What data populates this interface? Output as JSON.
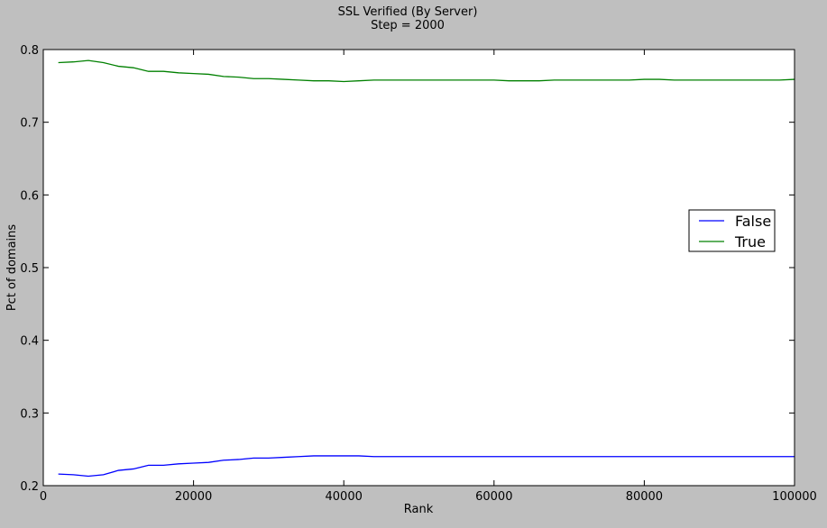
{
  "chart_data": {
    "type": "line",
    "title": "SSL Verified (By Server)",
    "subtitle": "Step = 2000",
    "xlabel": "Rank",
    "ylabel": "Pct of domains",
    "xlim": [
      0,
      100000
    ],
    "ylim": [
      0.2,
      0.8
    ],
    "xticks": [
      "0",
      "20000",
      "40000",
      "60000",
      "80000",
      "100000"
    ],
    "yticks": [
      "0.2",
      "0.3",
      "0.4",
      "0.5",
      "0.6",
      "0.7",
      "0.8"
    ],
    "legend_position": "center-right",
    "grid": false,
    "x": [
      2000,
      4000,
      6000,
      8000,
      10000,
      12000,
      14000,
      16000,
      18000,
      20000,
      22000,
      24000,
      26000,
      28000,
      30000,
      32000,
      34000,
      36000,
      38000,
      40000,
      42000,
      44000,
      46000,
      48000,
      50000,
      52000,
      54000,
      56000,
      58000,
      60000,
      62000,
      64000,
      66000,
      68000,
      70000,
      72000,
      74000,
      76000,
      78000,
      80000,
      82000,
      84000,
      86000,
      88000,
      90000,
      92000,
      94000,
      96000,
      98000,
      100000
    ],
    "series": [
      {
        "name": "False",
        "color": "#0000ff",
        "values": [
          0.216,
          0.215,
          0.213,
          0.215,
          0.221,
          0.223,
          0.228,
          0.228,
          0.23,
          0.231,
          0.232,
          0.235,
          0.236,
          0.238,
          0.238,
          0.239,
          0.24,
          0.241,
          0.241,
          0.241,
          0.241,
          0.24,
          0.24,
          0.24,
          0.24,
          0.24,
          0.24,
          0.24,
          0.24,
          0.24,
          0.24,
          0.24,
          0.24,
          0.24,
          0.24,
          0.24,
          0.24,
          0.24,
          0.24,
          0.24,
          0.24,
          0.24,
          0.24,
          0.24,
          0.24,
          0.24,
          0.24,
          0.24,
          0.24,
          0.24
        ]
      },
      {
        "name": "True",
        "color": "#008000",
        "values": [
          0.782,
          0.783,
          0.785,
          0.782,
          0.777,
          0.775,
          0.77,
          0.77,
          0.768,
          0.767,
          0.766,
          0.763,
          0.762,
          0.76,
          0.76,
          0.759,
          0.758,
          0.757,
          0.757,
          0.756,
          0.757,
          0.758,
          0.758,
          0.758,
          0.758,
          0.758,
          0.758,
          0.758,
          0.758,
          0.758,
          0.757,
          0.757,
          0.757,
          0.758,
          0.758,
          0.758,
          0.758,
          0.758,
          0.758,
          0.759,
          0.759,
          0.758,
          0.758,
          0.758,
          0.758,
          0.758,
          0.758,
          0.758,
          0.758,
          0.759
        ]
      }
    ]
  }
}
